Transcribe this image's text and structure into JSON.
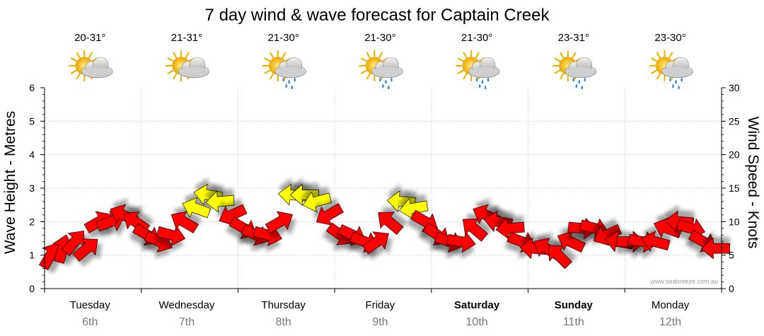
{
  "chart_data": {
    "type": "line",
    "title": "7 day wind & wave forecast for Captain Creek",
    "ylabel_left": "Wave Height - Metres",
    "ylabel_right": "Wind Speed - Knots",
    "ylim_left": [
      0,
      6
    ],
    "ylim_right": [
      0,
      30
    ],
    "left_ticks": [
      "0",
      "1",
      "2",
      "3",
      "4",
      "5",
      "6"
    ],
    "right_ticks": [
      "0",
      "5",
      "10",
      "15",
      "20",
      "25",
      "30"
    ],
    "credit": "www.seabreeze.com.au",
    "days": [
      {
        "name": "Tuesday",
        "date": "6th",
        "temp": "20-31°",
        "weather": "partly-cloudy",
        "bold": false
      },
      {
        "name": "Wednesday",
        "date": "7th",
        "temp": "21-31°",
        "weather": "partly-cloudy",
        "bold": false
      },
      {
        "name": "Thursday",
        "date": "8th",
        "temp": "21-30°",
        "weather": "showers",
        "bold": false
      },
      {
        "name": "Friday",
        "date": "9th",
        "temp": "21-30°",
        "weather": "showers",
        "bold": false
      },
      {
        "name": "Saturday",
        "date": "10th",
        "temp": "21-30°",
        "weather": "showers",
        "bold": true
      },
      {
        "name": "Sunday",
        "date": "11th",
        "temp": "23-31°",
        "weather": "showers",
        "bold": true
      },
      {
        "name": "Monday",
        "date": "12th",
        "temp": "23-30°",
        "weather": "showers",
        "bold": false
      }
    ],
    "wind_series": {
      "name": "Wind Speed",
      "units": "knots",
      "hours": [
        0,
        3,
        6,
        9,
        12,
        15,
        18,
        21,
        24,
        27,
        30,
        33,
        36,
        39,
        42,
        45,
        48,
        51,
        54,
        57,
        60,
        63,
        66,
        69,
        72,
        75,
        78,
        81,
        84,
        87,
        90,
        93,
        96,
        99,
        102,
        105,
        108,
        111,
        114,
        117,
        120,
        123,
        126,
        129,
        132,
        135,
        138,
        141,
        144,
        147,
        150,
        153,
        156,
        159,
        162,
        165
      ],
      "knots": [
        5,
        6,
        7,
        6,
        10,
        10,
        11,
        10,
        8,
        7,
        8,
        10,
        12,
        14,
        13,
        11,
        9,
        8,
        8,
        10,
        14,
        14,
        13,
        11,
        8,
        8,
        7,
        7,
        10,
        13,
        12,
        10,
        8,
        7,
        7,
        9,
        11,
        10,
        9,
        7,
        6,
        6,
        5,
        7,
        9,
        9,
        8,
        7,
        7,
        7,
        7,
        9,
        10,
        9,
        7,
        6
      ],
      "colors": [
        "red",
        "red",
        "red",
        "red",
        "red",
        "red",
        "red",
        "red",
        "red",
        "red",
        "red",
        "red",
        "yellow",
        "yellow",
        "yellow",
        "red",
        "red",
        "red",
        "red",
        "red",
        "yellow",
        "yellow",
        "yellow",
        "red",
        "red",
        "red",
        "red",
        "red",
        "red",
        "yellow",
        "yellow",
        "red",
        "red",
        "red",
        "red",
        "red",
        "red",
        "red",
        "red",
        "red",
        "red",
        "red",
        "red",
        "red",
        "red",
        "red",
        "red",
        "red",
        "red",
        "red",
        "red",
        "red",
        "red",
        "red",
        "red",
        "red"
      ]
    },
    "wave_series": {
      "name": "Wave Height",
      "units": "metres",
      "values": []
    }
  },
  "colors": {
    "red": "#ff0000",
    "yellow": "#ffff00",
    "grid": "#c8c8c8",
    "frame": "#000000"
  }
}
